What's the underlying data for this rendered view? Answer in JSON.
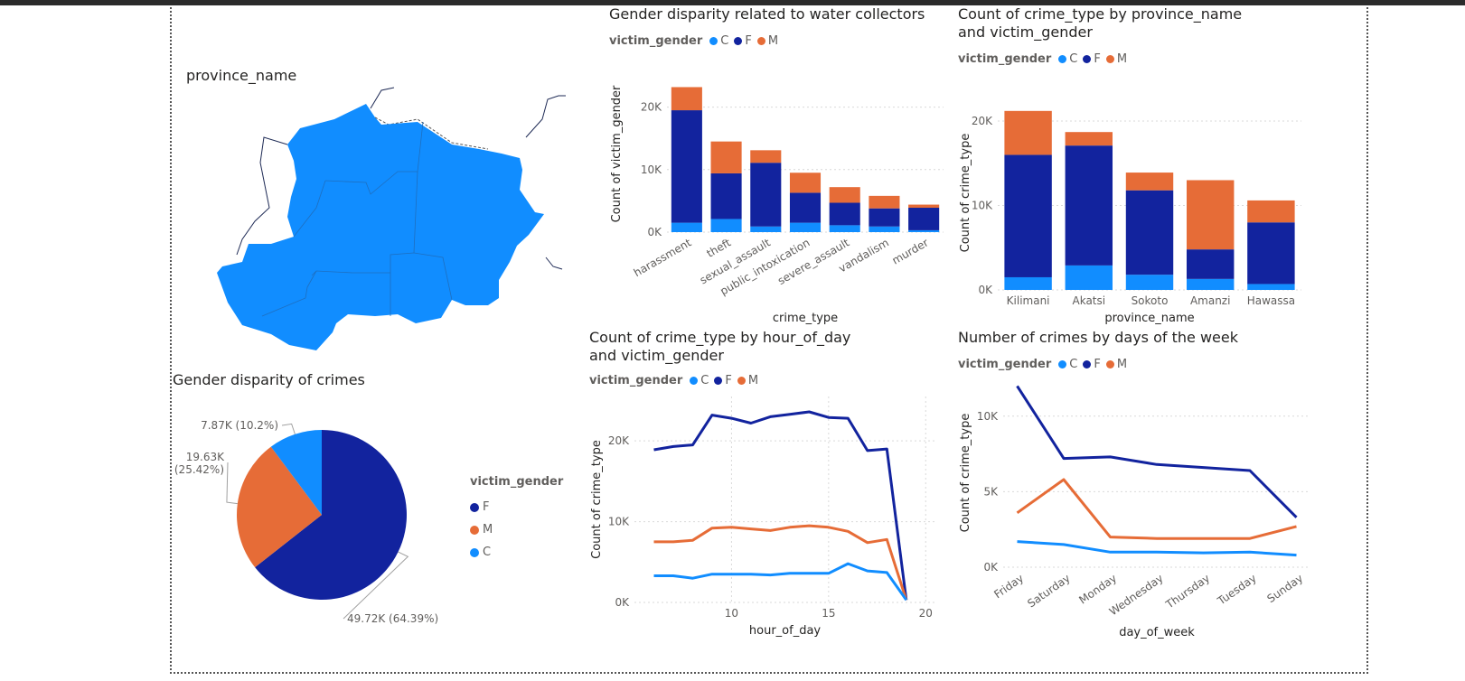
{
  "colors": {
    "C": "#118DFF",
    "F": "#12239E",
    "M": "#E66C37",
    "grid": "#d9d9d9",
    "axis_text": "#605e5c"
  },
  "map": {
    "title": "province_name"
  },
  "legend_labels": {
    "title": "victim_gender",
    "C": "C",
    "F": "F",
    "M": "M"
  },
  "chart_data": [
    {
      "id": "crime_type_bar",
      "type": "bar",
      "stacked": true,
      "title": "Gender disparity related to water collectors",
      "xlabel": "crime_type",
      "ylabel": "Count of victim_gender",
      "categories": [
        "harassment",
        "theft",
        "sexual_assault",
        "public_intoxication",
        "severe_assault",
        "vandalism",
        "murder"
      ],
      "series": [
        {
          "name": "C",
          "values": [
            1500,
            2100,
            900,
            1500,
            1100,
            900,
            300
          ]
        },
        {
          "name": "F",
          "values": [
            18000,
            7300,
            10200,
            4800,
            3600,
            2900,
            3600
          ]
        },
        {
          "name": "M",
          "values": [
            3700,
            5100,
            2000,
            3200,
            2500,
            2000,
            500
          ]
        }
      ],
      "ylim": [
        0,
        25000
      ],
      "yticks": [
        {
          "v": 0,
          "label": "0K"
        },
        {
          "v": 10000,
          "label": "10K"
        },
        {
          "v": 20000,
          "label": "20K"
        }
      ],
      "grid": true,
      "legend_position": "top-left"
    },
    {
      "id": "province_bar",
      "type": "bar",
      "stacked": true,
      "title": "Count of crime_type by province_name and victim_gender",
      "xlabel": "province_name",
      "ylabel": "Count of crime_type",
      "categories": [
        "Kilimani",
        "Akatsi",
        "Sokoto",
        "Amanzi",
        "Hawassa"
      ],
      "series": [
        {
          "name": "C",
          "values": [
            1500,
            2900,
            1800,
            1300,
            700
          ]
        },
        {
          "name": "F",
          "values": [
            14500,
            14200,
            10000,
            3500,
            7300
          ]
        },
        {
          "name": "M",
          "values": [
            5200,
            1600,
            2100,
            8200,
            2600
          ]
        }
      ],
      "ylim": [
        0,
        23000
      ],
      "yticks": [
        {
          "v": 0,
          "label": "0K"
        },
        {
          "v": 10000,
          "label": "10K"
        },
        {
          "v": 20000,
          "label": "20K"
        }
      ],
      "grid": true,
      "legend_position": "top-left"
    },
    {
      "id": "gender_pie",
      "type": "pie",
      "title": "Gender disparity of crimes",
      "slices": [
        {
          "name": "F",
          "value": 49720,
          "label": "49.72K (64.39%)"
        },
        {
          "name": "M",
          "value": 19630,
          "label_line1": "19.63K",
          "label_line2": "(25.42%)"
        },
        {
          "name": "C",
          "value": 7870,
          "label": "7.87K (10.2%)"
        }
      ],
      "legend_title": "victim_gender",
      "legend_order": [
        "F",
        "M",
        "C"
      ],
      "legend_position": "right"
    },
    {
      "id": "hour_line",
      "type": "line",
      "title": "Count of crime_type by hour_of_day and victim_gender",
      "xlabel": "hour_of_day",
      "ylabel": "Count of crime_type",
      "x": [
        6,
        7,
        8,
        9,
        10,
        11,
        12,
        13,
        14,
        15,
        16,
        17,
        18,
        19
      ],
      "series": [
        {
          "name": "F",
          "values": [
            18900,
            19300,
            19500,
            23200,
            22800,
            22200,
            23000,
            23300,
            23600,
            22900,
            22800,
            18800,
            19000,
            300
          ]
        },
        {
          "name": "M",
          "values": [
            7500,
            7500,
            7700,
            9200,
            9300,
            9100,
            8900,
            9300,
            9500,
            9300,
            8800,
            7400,
            7800,
            300
          ]
        },
        {
          "name": "C",
          "values": [
            3300,
            3300,
            3000,
            3500,
            3500,
            3500,
            3400,
            3600,
            3600,
            3600,
            4800,
            3900,
            3700,
            300
          ]
        }
      ],
      "xlim": [
        5,
        20.5
      ],
      "ylim": [
        0,
        25500
      ],
      "xticks": [
        10,
        15,
        20
      ],
      "yticks": [
        {
          "v": 0,
          "label": "0K"
        },
        {
          "v": 10000,
          "label": "10K"
        },
        {
          "v": 20000,
          "label": "20K"
        }
      ],
      "grid": true,
      "legend_position": "top-left"
    },
    {
      "id": "day_line",
      "type": "line",
      "title": "Number of crimes by days of the week",
      "xlabel": "day_of_week",
      "ylabel": "Count of crime_type",
      "categories": [
        "Friday",
        "Saturday",
        "Monday",
        "Wednesday",
        "Thursday",
        "Tuesday",
        "Sunday"
      ],
      "series": [
        {
          "name": "F",
          "values": [
            12000,
            7200,
            7300,
            6800,
            6600,
            6400,
            3300
          ]
        },
        {
          "name": "M",
          "values": [
            3600,
            5800,
            2000,
            1900,
            1900,
            1900,
            2700
          ]
        },
        {
          "name": "C",
          "values": [
            1700,
            1500,
            1000,
            1000,
            950,
            1000,
            800
          ]
        }
      ],
      "ylim": [
        0,
        12500
      ],
      "yticks": [
        {
          "v": 0,
          "label": "0K"
        },
        {
          "v": 5000,
          "label": "5K"
        },
        {
          "v": 10000,
          "label": "10K"
        }
      ],
      "grid": true,
      "legend_position": "top-left"
    }
  ]
}
